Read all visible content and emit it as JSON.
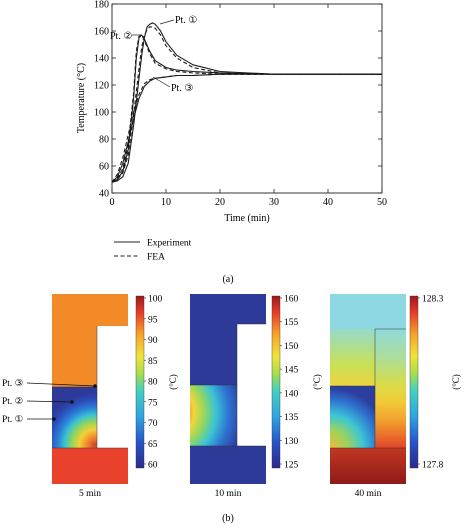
{
  "figure_a": {
    "label": "(a)",
    "chart_data": {
      "type": "line",
      "title": "",
      "xlabel": "Time (min)",
      "ylabel": "Temperature (°C)",
      "xlim": [
        0,
        50
      ],
      "ylim": [
        40,
        180
      ],
      "xticks": [
        0,
        10,
        20,
        30,
        40,
        50
      ],
      "yticks": [
        40,
        60,
        80,
        100,
        120,
        140,
        160,
        180
      ],
      "grid": false,
      "legend_placement": "below",
      "legend": [
        {
          "label": "Experiment",
          "style": "solid"
        },
        {
          "label": "FEA",
          "style": "dashed"
        }
      ],
      "annotations": [
        {
          "text": "Pt. ①",
          "x": 7,
          "y": 165
        },
        {
          "text": "Pt. ②",
          "x": 4.5,
          "y": 157
        },
        {
          "text": "Pt. ③",
          "x": 8,
          "y": 128
        }
      ],
      "series": [
        {
          "point": "1",
          "style": "solid",
          "x": [
            0,
            1,
            2,
            3,
            4,
            5,
            5.5,
            6,
            6.5,
            7,
            7.5,
            8,
            9,
            10,
            12,
            15,
            20,
            25,
            30,
            40,
            50
          ],
          "y": [
            48,
            49,
            52,
            62,
            90,
            125,
            142,
            155,
            163,
            165,
            166,
            165,
            160,
            152,
            142,
            135,
            130,
            129,
            128,
            128,
            128
          ]
        },
        {
          "point": "1",
          "style": "dashed",
          "x": [
            0,
            1,
            2,
            3,
            4,
            5,
            5.5,
            6,
            6.5,
            7,
            7.5,
            8,
            9,
            10,
            12,
            15,
            20,
            25,
            30,
            40,
            50
          ],
          "y": [
            48,
            50,
            55,
            68,
            98,
            132,
            148,
            157,
            161,
            163,
            163,
            162,
            157,
            149,
            140,
            133,
            129,
            128,
            128,
            128,
            128
          ]
        },
        {
          "point": "2",
          "style": "solid",
          "x": [
            0,
            1,
            2,
            3,
            4,
            4.5,
            5,
            5.5,
            6,
            7,
            8,
            10,
            12,
            15,
            20,
            30,
            40,
            50
          ],
          "y": [
            48,
            50,
            56,
            72,
            110,
            140,
            155,
            157,
            154,
            145,
            138,
            133,
            131,
            130,
            129,
            128,
            128,
            128
          ]
        },
        {
          "point": "2",
          "style": "dashed",
          "x": [
            0,
            1,
            2,
            3,
            4,
            4.5,
            5,
            5.5,
            6,
            7,
            8,
            10,
            12,
            15,
            20,
            30,
            40,
            50
          ],
          "y": [
            48,
            51,
            58,
            76,
            114,
            145,
            156,
            157,
            153,
            143,
            136,
            132,
            130,
            129,
            128,
            128,
            128,
            128
          ]
        },
        {
          "point": "3",
          "style": "solid",
          "x": [
            0,
            1,
            2,
            3,
            4,
            5,
            6,
            7,
            8,
            10,
            12,
            15,
            20,
            30,
            40,
            50
          ],
          "y": [
            48,
            52,
            62,
            78,
            95,
            110,
            119,
            123,
            125,
            126,
            127,
            127,
            128,
            128,
            128,
            128
          ]
        },
        {
          "point": "3",
          "style": "dashed",
          "x": [
            0,
            1,
            2,
            3,
            4,
            5,
            6,
            7,
            8,
            10,
            12,
            15,
            20,
            30,
            40,
            50
          ],
          "y": [
            48,
            54,
            66,
            83,
            100,
            113,
            121,
            124,
            125,
            126,
            127,
            127,
            128,
            128,
            128,
            128
          ]
        }
      ]
    }
  },
  "figure_b": {
    "label": "(b)",
    "unit_label": "(°C)",
    "point_labels": [
      "Pt. ③",
      "Pt. ②",
      "Pt. ①"
    ],
    "panels": [
      {
        "time": "5 min",
        "colorbar_ticks": [
          "100",
          "95",
          "90",
          "85",
          "80",
          "75",
          "70",
          "65",
          "60"
        ]
      },
      {
        "time": "10 min",
        "colorbar_ticks": [
          "160",
          "155",
          "150",
          "145",
          "140",
          "135",
          "130",
          "125"
        ]
      },
      {
        "time": "40 min",
        "colorbar_ticks": [
          "128.3",
          "127.8"
        ]
      }
    ]
  }
}
